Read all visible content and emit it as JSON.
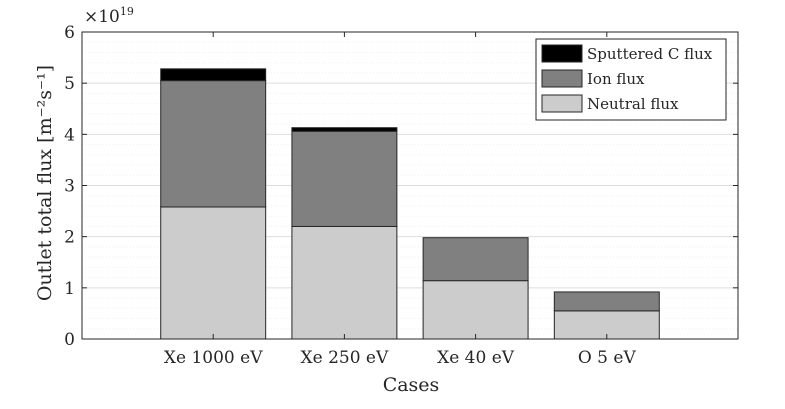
{
  "chart_data": {
    "type": "bar",
    "stacked": true,
    "categories": [
      "Xe 1000 eV",
      "Xe 250 eV",
      "Xe 40 eV",
      "O 5 eV"
    ],
    "series": [
      {
        "name": "Neutral flux",
        "color": "#cccccc",
        "values": [
          2.58,
          2.2,
          1.14,
          0.55
        ]
      },
      {
        "name": "Ion flux",
        "color": "#808080",
        "values": [
          2.47,
          1.86,
          0.84,
          0.37
        ]
      },
      {
        "name": "Sputtered C flux",
        "color": "#000000",
        "values": [
          0.23,
          0.07,
          0.0,
          0.0
        ]
      }
    ],
    "legend_order": [
      "Sputtered C flux",
      "Ion flux",
      "Neutral flux"
    ],
    "legend_position": "top-right",
    "xlabel": "Cases",
    "ylabel": "Outlet total flux [m⁻²s⁻¹]",
    "ylim": [
      0,
      6
    ],
    "yticks": [
      "0",
      "1",
      "2",
      "3",
      "4",
      "5",
      "6"
    ],
    "y_exponent_base": "×10",
    "y_exponent_power": "19",
    "grid": "horizontal major and minor",
    "xlim": [
      0,
      5
    ]
  }
}
